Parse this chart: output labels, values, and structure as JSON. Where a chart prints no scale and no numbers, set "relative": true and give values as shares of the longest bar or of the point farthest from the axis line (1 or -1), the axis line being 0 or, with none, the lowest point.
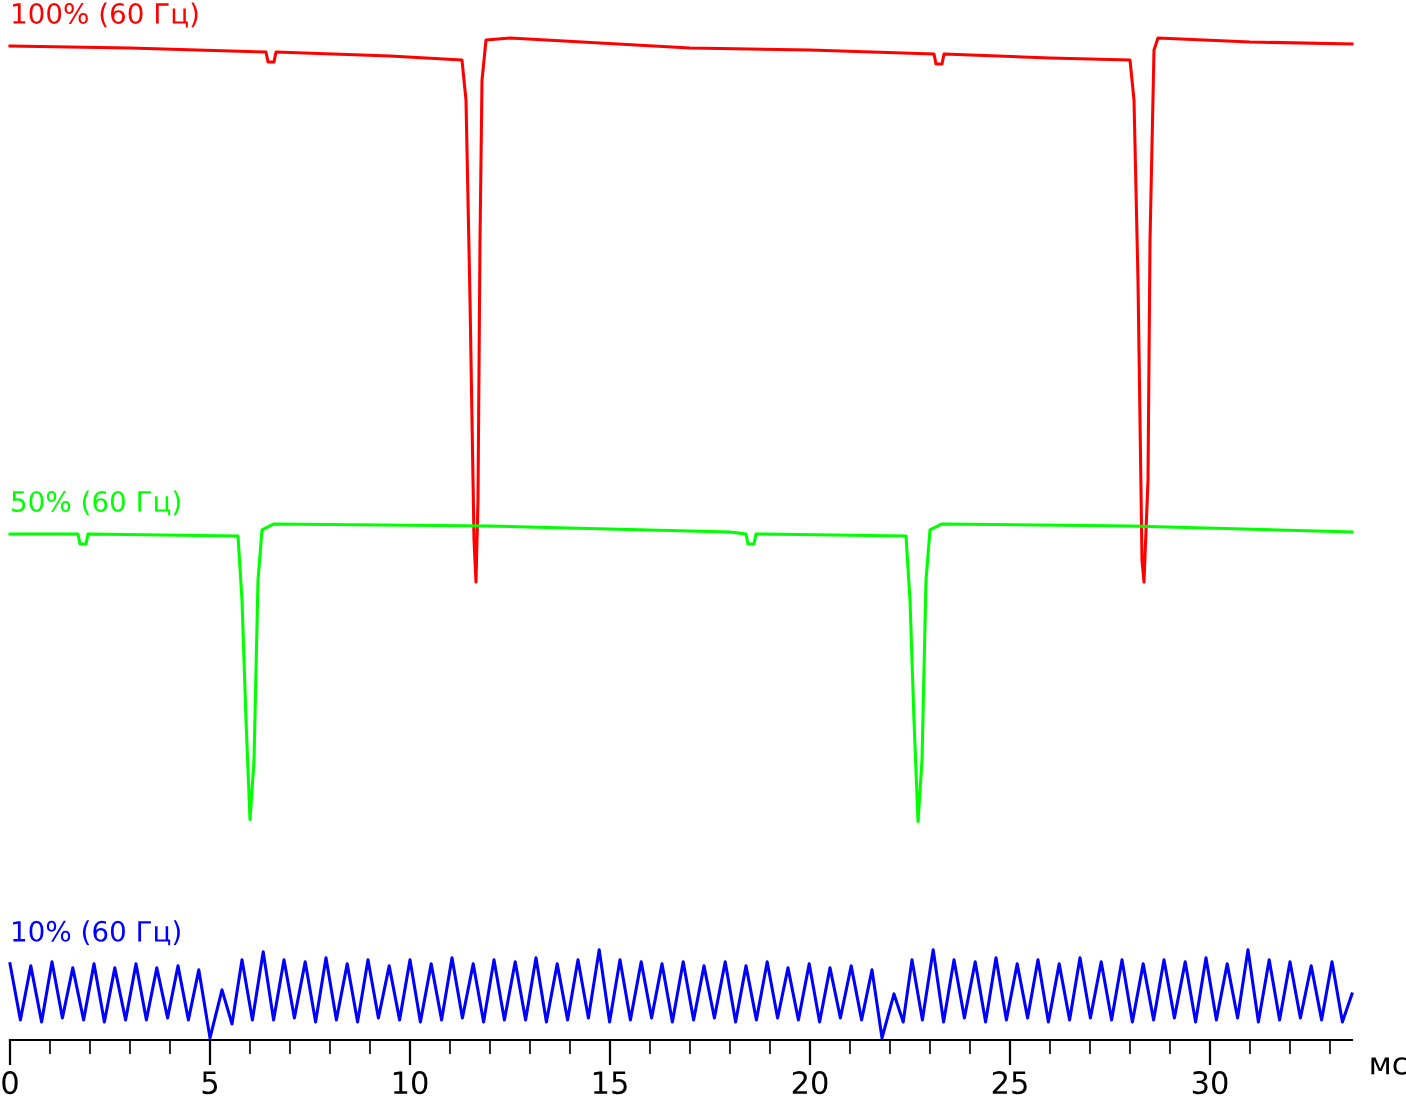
{
  "chart_data": {
    "type": "line",
    "relative": true,
    "xlabel": "мс",
    "xlim": [
      0,
      33.55
    ],
    "xticks": [
      0,
      {
        "value": 1,
        "label": null
      },
      {
        "value": 2,
        "label": null
      },
      {
        "value": 3,
        "label": null
      },
      {
        "value": 4,
        "label": null
      },
      5,
      {
        "value": 6,
        "label": null
      },
      {
        "value": 7,
        "label": null
      },
      {
        "value": 8,
        "label": null
      },
      {
        "value": 9,
        "label": null
      },
      10,
      {
        "value": 11,
        "label": null
      },
      {
        "value": 12,
        "label": null
      },
      {
        "value": 13,
        "label": null
      },
      {
        "value": 14,
        "label": null
      },
      15,
      {
        "value": 16,
        "label": null
      },
      {
        "value": 17,
        "label": null
      },
      {
        "value": 18,
        "label": null
      },
      {
        "value": 19,
        "label": null
      },
      20,
      {
        "value": 21,
        "label": null
      },
      {
        "value": 22,
        "label": null
      },
      {
        "value": 23,
        "label": null
      },
      {
        "value": 24,
        "label": null
      },
      25,
      {
        "value": 26,
        "label": null
      },
      {
        "value": 27,
        "label": null
      },
      {
        "value": 28,
        "label": null
      },
      {
        "value": 29,
        "label": null
      },
      30,
      {
        "value": 31,
        "label": null
      },
      {
        "value": 32,
        "label": null
      },
      {
        "value": 33,
        "label": null
      }
    ],
    "grid": false,
    "legend": false,
    "marker": "none",
    "line_style": "solid",
    "series": [
      {
        "name": "100% (60 Гц)",
        "color": "#ff0000",
        "x": [
          0,
          3,
          6.4,
          6.45,
          6.6,
          6.65,
          9.5,
          11.3,
          11.4,
          11.5,
          11.6,
          11.65,
          11.7,
          11.75,
          11.8,
          11.9,
          12.5,
          17,
          20,
          23.1,
          23.15,
          23.3,
          23.35,
          26,
          28.0,
          28.1,
          28.2,
          28.3,
          28.35,
          28.45,
          28.5,
          28.6,
          28.7,
          31,
          33.55
        ],
        "values": [
          0.992,
          0.99,
          0.986,
          0.976,
          0.976,
          0.986,
          0.982,
          0.978,
          0.938,
          0.739,
          0.499,
          0.457,
          0.539,
          0.798,
          0.958,
          0.998,
          1.0,
          0.99,
          0.988,
          0.984,
          0.974,
          0.974,
          0.984,
          0.98,
          0.978,
          0.938,
          0.758,
          0.479,
          0.457,
          0.559,
          0.798,
          0.988,
          1.0,
          0.996,
          0.994
        ]
      },
      {
        "name": "50% (60 Гц)",
        "color": "#00ff00",
        "x": [
          0,
          1.7,
          1.75,
          1.9,
          1.95,
          5.7,
          5.8,
          5.9,
          6.0,
          6.1,
          6.2,
          6.3,
          6.6,
          12,
          18,
          18.4,
          18.45,
          18.6,
          18.65,
          22.4,
          22.5,
          22.6,
          22.7,
          22.8,
          22.9,
          23.0,
          23.3,
          28,
          33.55
        ],
        "values": [
          0.505,
          0.505,
          0.495,
          0.495,
          0.505,
          0.503,
          0.439,
          0.319,
          0.22,
          0.279,
          0.459,
          0.509,
          0.515,
          0.513,
          0.507,
          0.505,
          0.495,
          0.495,
          0.505,
          0.503,
          0.439,
          0.319,
          0.218,
          0.279,
          0.459,
          0.509,
          0.515,
          0.513,
          0.507
        ]
      },
      {
        "name": "10% (60 Гц)",
        "color": "#0000ff",
        "x": [
          0,
          0.26,
          0.52,
          0.79,
          1.05,
          1.31,
          1.57,
          1.84,
          2.1,
          2.36,
          2.62,
          2.89,
          3.15,
          3.41,
          3.67,
          3.94,
          4.2,
          4.46,
          4.72,
          5.0,
          5.3,
          5.55,
          5.8,
          6.06,
          6.33,
          6.59,
          6.85,
          7.11,
          7.38,
          7.64,
          7.9,
          8.16,
          8.43,
          8.69,
          8.95,
          9.21,
          9.48,
          9.74,
          10.0,
          10.26,
          10.53,
          10.79,
          11.05,
          11.31,
          11.58,
          11.84,
          12.1,
          12.36,
          12.63,
          12.89,
          13.15,
          13.41,
          13.68,
          13.94,
          14.2,
          14.46,
          14.73,
          14.99,
          15.25,
          15.51,
          15.78,
          16.04,
          16.3,
          16.56,
          16.83,
          17.09,
          17.35,
          17.61,
          17.88,
          18.14,
          18.4,
          18.66,
          18.93,
          19.19,
          19.45,
          19.71,
          19.98,
          20.24,
          20.5,
          20.76,
          21.03,
          21.29,
          21.55,
          21.8,
          22.1,
          22.33,
          22.55,
          22.81,
          23.08,
          23.34,
          23.6,
          23.86,
          24.13,
          24.39,
          24.65,
          24.91,
          25.18,
          25.44,
          25.7,
          25.96,
          26.23,
          26.49,
          26.75,
          27.01,
          27.28,
          27.54,
          27.8,
          28.06,
          28.33,
          28.59,
          28.85,
          29.11,
          29.38,
          29.64,
          29.9,
          30.16,
          30.43,
          30.69,
          30.95,
          31.21,
          31.48,
          31.74,
          32.0,
          32.26,
          32.53,
          32.79,
          33.05,
          33.31,
          33.55
        ],
        "values": [
          0.076,
          0.02,
          0.074,
          0.018,
          0.078,
          0.022,
          0.072,
          0.02,
          0.076,
          0.018,
          0.072,
          0.02,
          0.076,
          0.02,
          0.072,
          0.022,
          0.074,
          0.02,
          0.07,
          0.002,
          0.05,
          0.016,
          0.08,
          0.02,
          0.088,
          0.02,
          0.08,
          0.022,
          0.078,
          0.018,
          0.082,
          0.02,
          0.076,
          0.018,
          0.08,
          0.022,
          0.074,
          0.02,
          0.08,
          0.018,
          0.076,
          0.02,
          0.082,
          0.022,
          0.076,
          0.018,
          0.08,
          0.02,
          0.078,
          0.02,
          0.082,
          0.018,
          0.076,
          0.02,
          0.08,
          0.022,
          0.09,
          0.018,
          0.08,
          0.02,
          0.078,
          0.022,
          0.076,
          0.018,
          0.078,
          0.02,
          0.074,
          0.022,
          0.078,
          0.018,
          0.074,
          0.02,
          0.078,
          0.022,
          0.072,
          0.02,
          0.076,
          0.018,
          0.072,
          0.022,
          0.074,
          0.02,
          0.07,
          0.002,
          0.046,
          0.018,
          0.08,
          0.02,
          0.09,
          0.018,
          0.08,
          0.022,
          0.078,
          0.018,
          0.082,
          0.02,
          0.076,
          0.022,
          0.08,
          0.018,
          0.076,
          0.02,
          0.082,
          0.022,
          0.078,
          0.02,
          0.08,
          0.018,
          0.076,
          0.02,
          0.08,
          0.022,
          0.078,
          0.018,
          0.082,
          0.02,
          0.076,
          0.022,
          0.09,
          0.018,
          0.08,
          0.02,
          0.078,
          0.022,
          0.074,
          0.02,
          0.078,
          0.018,
          0.046
        ]
      }
    ]
  }
}
